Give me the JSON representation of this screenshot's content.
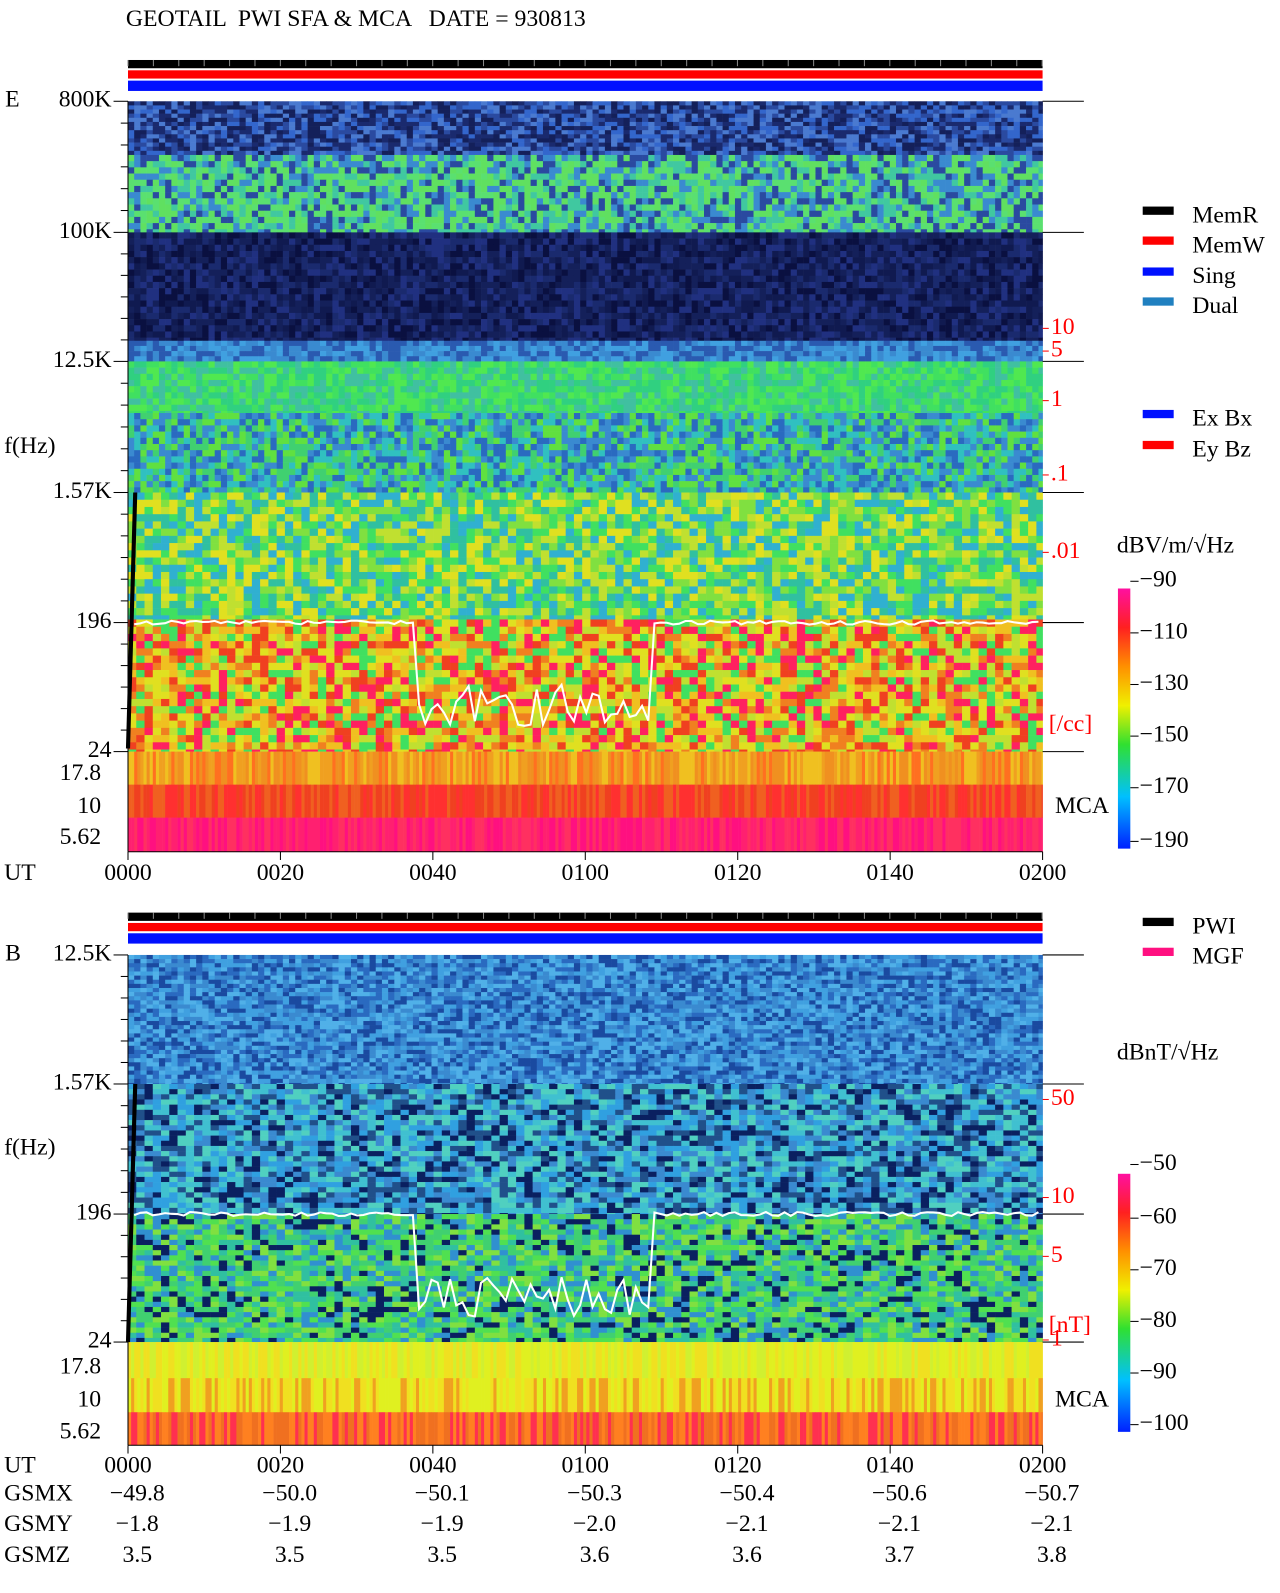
{
  "header": {
    "title": "GEOTAIL  PWI SFA & MCA   DATE = 930813"
  },
  "panels": [
    {
      "label": "E",
      "ylabel": "f(Hz)",
      "freq_ticks": [
        "800K",
        "100K",
        "12.5K",
        "1.57K",
        "196",
        "24"
      ],
      "mca_ticks": [
        "17.8",
        "10",
        "5.62"
      ],
      "time_label": "UT",
      "time_ticks": [
        "0000",
        "0020",
        "0040",
        "0100",
        "0120",
        "0140",
        "0200"
      ],
      "right_ticks": [
        "10",
        "5",
        "1",
        ".1",
        ".01"
      ],
      "right_unit": "[/cc]",
      "mca_label": "MCA",
      "legend": [
        "MemR",
        "MemW",
        "Sing",
        "Dual"
      ],
      "legend2": [
        "Ex Bx",
        "Ey Bz"
      ],
      "colorbar_unit": "dBV/m/√Hz",
      "colorbar_ticks": [
        "−90",
        "−110",
        "−130",
        "−150",
        "−170",
        "−190"
      ]
    },
    {
      "label": "B",
      "ylabel": "f(Hz)",
      "freq_ticks": [
        "12.5K",
        "1.57K",
        "196",
        "24"
      ],
      "mca_ticks": [
        "17.8",
        "10",
        "5.62"
      ],
      "time_label": "UT",
      "time_ticks": [
        "0000",
        "0020",
        "0040",
        "0100",
        "0120",
        "0140",
        "0200"
      ],
      "right_ticks": [
        "50",
        "10",
        "5",
        "1"
      ],
      "right_unit": "[nT]",
      "mca_label": "MCA",
      "legend": [
        "PWI",
        "MGF"
      ],
      "colorbar_unit": "dBnT/√Hz",
      "colorbar_ticks": [
        "−50",
        "−60",
        "−70",
        "−80",
        "−90",
        "−100"
      ]
    }
  ],
  "orbit": {
    "rows": [
      {
        "label": "GSMX",
        "values": [
          "−49.8",
          "−50.0",
          "−50.1",
          "−50.3",
          "−50.4",
          "−50.6",
          "−50.7"
        ]
      },
      {
        "label": "GSMY",
        "values": [
          "−1.8",
          "−1.9",
          "−1.9",
          "−2.0",
          "−2.1",
          "−2.1",
          "−2.1"
        ]
      },
      {
        "label": "GSMZ",
        "values": [
          "3.5",
          "3.5",
          "3.5",
          "3.6",
          "3.6",
          "3.7",
          "3.8"
        ]
      }
    ]
  }
}
